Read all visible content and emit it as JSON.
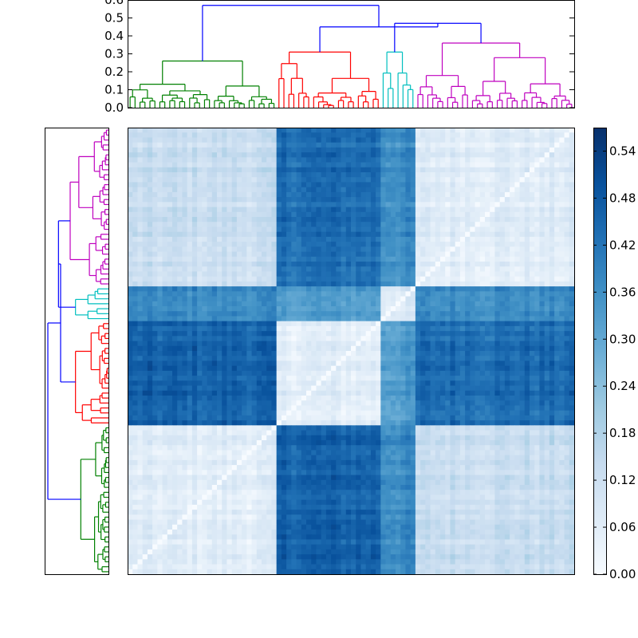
{
  "chart_data": [
    {
      "type": "dendrogram",
      "orientation": "top",
      "ylim": [
        0,
        0.6
      ],
      "yticks": [
        "0.0",
        "0.1",
        "0.2",
        "0.3",
        "0.4",
        "0.5",
        "0.6"
      ],
      "root_height": 0.57,
      "clusters": [
        {
          "color": "#008000",
          "leaves": 30,
          "height": 0.26
        },
        {
          "color": "#ff0000",
          "leaves": 21,
          "height": 0.31
        },
        {
          "color": "#00bfbf",
          "leaves": 7,
          "height": 0.31
        },
        {
          "color": "#bf00bf",
          "leaves": 32,
          "height": 0.36
        }
      ],
      "link_color": "#0000ff",
      "upper_merges": [
        {
          "height": 0.47,
          "note": "cyan+magenta"
        },
        {
          "height": 0.47,
          "note": "red+(cyan+magenta)"
        },
        {
          "height": 0.57,
          "note": "green+rest"
        }
      ]
    },
    {
      "type": "dendrogram",
      "orientation": "left",
      "clusters_top_to_bottom": [
        "#bf00bf",
        "#00bfbf",
        "#ff0000",
        "#008000"
      ],
      "link_color": "#0000ff"
    },
    {
      "type": "heatmap",
      "cmap": "Blues",
      "matrix_size": 90,
      "vmin": 0.0,
      "vmax": 0.57,
      "block_order_cols": [
        "green",
        "red",
        "cyan",
        "magenta"
      ],
      "block_order_rows_top_to_bottom": [
        "magenta",
        "cyan",
        "red",
        "green"
      ],
      "diagonal": "anti-diagonal, value 0",
      "block_means": {
        "green-green": 0.06,
        "green-red": 0.46,
        "green-cyan": 0.37,
        "green-magenta": 0.13,
        "red-red": 0.06,
        "red-cyan": 0.33,
        "red-magenta": 0.44,
        "cyan-cyan": 0.08,
        "cyan-magenta": 0.37,
        "magenta-magenta": 0.07
      }
    },
    {
      "type": "colorbar",
      "cmap": "Blues",
      "range": [
        0.0,
        0.57
      ],
      "ticks": [
        "0.00",
        "0.06",
        "0.12",
        "0.18",
        "0.24",
        "0.30",
        "0.36",
        "0.42",
        "0.48",
        "0.54"
      ]
    }
  ]
}
